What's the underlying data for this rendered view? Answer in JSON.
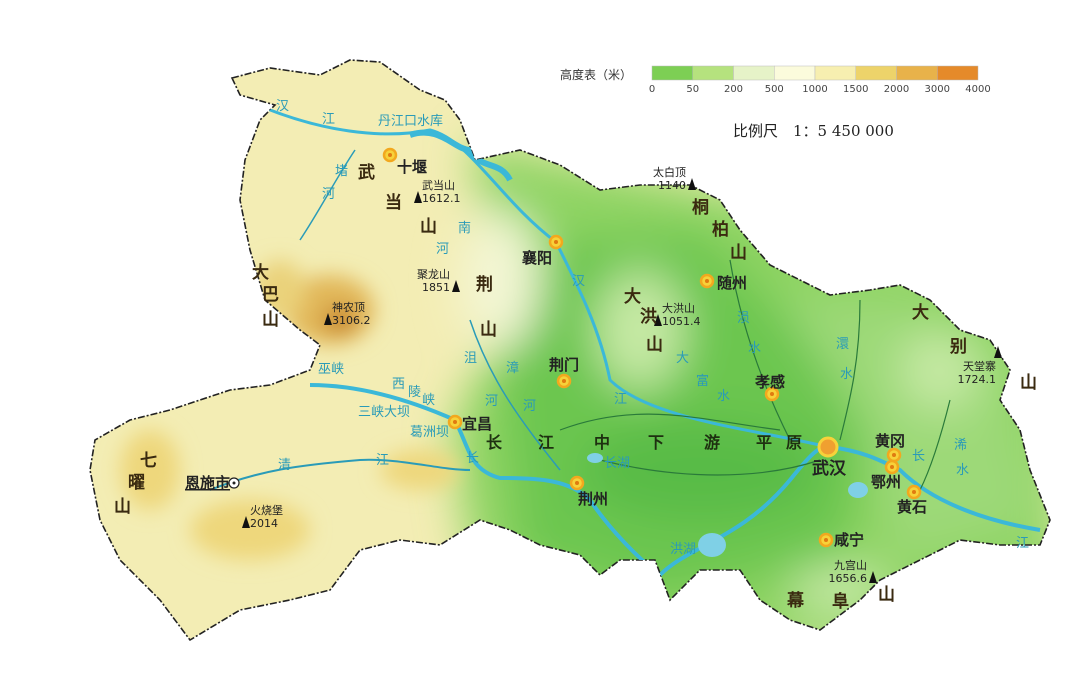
{
  "legend": {
    "title": "高度表（米）",
    "ticks": [
      "0",
      "50",
      "200",
      "500",
      "1000",
      "1500",
      "2000",
      "3000",
      "4000"
    ],
    "colors": [
      "#7dcf54",
      "#b5e27e",
      "#e6f3c8",
      "#fbfbdc",
      "#f7efb0",
      "#edd36a",
      "#e8b24a",
      "#e58a2a"
    ]
  },
  "scale": "比例尺　1：5 450 000",
  "colors": {
    "river": "#3bb8d8",
    "city_dot": "#f2a81e",
    "border": "#222222",
    "lowland": "#6cc650",
    "upland": "#f1e9a8",
    "mountain": "#d9a84a"
  },
  "cities": {
    "shiyan": "十堰",
    "xiangyang": "襄阳",
    "suizhou": "随州",
    "xiaogan": "孝感",
    "jingmen": "荆门",
    "yichang": "宜昌",
    "jingzhou": "荆州",
    "wuhan": "武汉",
    "huanggang": "黄冈",
    "ezhou": "鄂州",
    "huangshi": "黄石",
    "xianning": "咸宁",
    "enshi": "恩施市"
  },
  "peaks": [
    {
      "name": "武当山",
      "elev": "1612.1"
    },
    {
      "name": "神农顶",
      "elev": "3106.2"
    },
    {
      "name": "聚龙山",
      "elev": "1851"
    },
    {
      "name": "太白顶",
      "elev": "1140"
    },
    {
      "name": "大洪山",
      "elev": "1051.4"
    },
    {
      "name": "天堂寨",
      "elev": "1724.1"
    },
    {
      "name": "九宫山",
      "elev": "1656.6"
    },
    {
      "name": "火烧堡",
      "elev": "2014"
    }
  ],
  "ranges": {
    "wudang": [
      "武",
      "当",
      "山"
    ],
    "daba": [
      "大",
      "巴",
      "山"
    ],
    "jing": [
      "荆",
      "山"
    ],
    "dahong": [
      "大",
      "洪",
      "山"
    ],
    "tongbai": [
      "桐",
      "柏",
      "山"
    ],
    "dabie": [
      "大",
      "别",
      "山"
    ],
    "qiyao": [
      "七",
      "曜",
      "山"
    ],
    "mufu": [
      "幕",
      "阜",
      "山"
    ]
  },
  "rivers": {
    "hanjiang_upper": [
      "汉",
      "江"
    ],
    "danjiangkou": "丹江口水库",
    "duhe": [
      "堵",
      "河"
    ],
    "nanhe": [
      "南",
      "河"
    ],
    "hanjiang_mid": "汉",
    "juhe": [
      "沮",
      "河"
    ],
    "zhanghe": [
      "漳",
      "河"
    ],
    "jiang_mid": "江",
    "dafushui": [
      "大",
      "富",
      "水"
    ],
    "yunshui": [
      "涢",
      "水"
    ],
    "huanshui": [
      "澴",
      "水"
    ],
    "wuxia": "巫峡",
    "xiling": [
      "西",
      "陵",
      "峡"
    ],
    "sanxia": "三峡大坝",
    "gezhouba": "葛洲坝",
    "qingjiang": [
      "清",
      "江"
    ],
    "changhu": "长湖",
    "honghu": "洪湖",
    "xishui": [
      "浠",
      "水"
    ],
    "chang_w": "长",
    "chang_e": "长",
    "jiang_e": "江"
  },
  "plain": [
    "长",
    "江",
    "中",
    "下",
    "游",
    "平",
    "原"
  ]
}
